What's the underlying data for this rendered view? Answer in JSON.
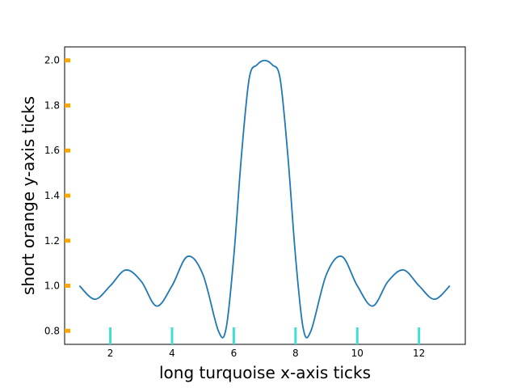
{
  "chart_data": {
    "type": "line",
    "title": "",
    "xlabel": "long turquoise x-axis ticks",
    "ylabel": "short orange y-axis ticks",
    "xlim": [
      0.52,
      13.5
    ],
    "ylim": [
      0.74,
      2.06
    ],
    "x_ticks": [
      2,
      4,
      6,
      8,
      10,
      12
    ],
    "x_tick_labels": [
      "2",
      "4",
      "6",
      "8",
      "10",
      "12"
    ],
    "y_ticks": [
      0.8,
      1.0,
      1.2,
      1.4,
      1.6,
      1.8,
      2.0
    ],
    "y_tick_labels": [
      "0.8",
      "1.0",
      "1.2",
      "1.4",
      "1.6",
      "1.8",
      "2.0"
    ],
    "x_tick_color": "#40e0d0",
    "y_tick_color": "#ffa500",
    "grid": false,
    "series": [
      {
        "color": "#1f77b4",
        "x": [
          1.0,
          1.5,
          2.0,
          2.5,
          3.0,
          3.5,
          4.0,
          4.5,
          5.0,
          5.5,
          5.75,
          6.0,
          6.25,
          6.5,
          6.75,
          7.0,
          7.25,
          7.5,
          7.75,
          8.0,
          8.25,
          8.5,
          9.0,
          9.5,
          10.0,
          10.5,
          11.0,
          11.5,
          12.0,
          12.5,
          13.0
        ],
        "y": [
          1.0,
          0.94,
          1.0,
          1.07,
          1.02,
          0.91,
          1.0,
          1.13,
          1.05,
          0.8,
          0.81,
          1.13,
          1.58,
          1.92,
          1.98,
          2.0,
          1.98,
          1.92,
          1.58,
          1.13,
          0.81,
          0.8,
          1.05,
          1.13,
          1.0,
          0.91,
          1.02,
          1.07,
          1.0,
          0.94,
          1.0
        ]
      }
    ]
  }
}
